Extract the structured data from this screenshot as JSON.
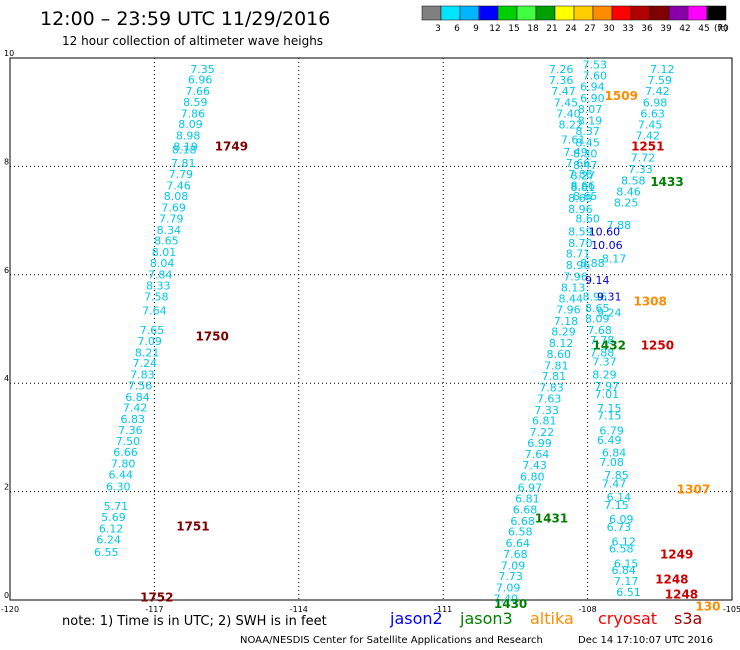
{
  "title": "12:00 – 23:59 UTC 11/29/2016",
  "subtitle": "12 hour collection of altimeter wave heighs",
  "legend": {
    "colors": [
      "#808080",
      "#00e5ff",
      "#00b4ff",
      "#0000ff",
      "#00d000",
      "#40ff40",
      "#00a000",
      "#ffff00",
      "#ffcc00",
      "#ff8c00",
      "#ff0000",
      "#b00000",
      "#800000",
      "#8800aa",
      "#ff00ff",
      "#000000"
    ],
    "labels": [
      "3",
      "6",
      "9",
      "12",
      "15",
      "18",
      "21",
      "24",
      "27",
      "30",
      "33",
      "36",
      "39",
      "42",
      "45",
      "70"
    ],
    "unit": "(ft)"
  },
  "note": "note: 1) Time is in UTC; 2) SWH is in feet",
  "satellites": [
    {
      "name": "jason2",
      "color": "#0000ff"
    },
    {
      "name": "jason3",
      "color": "#008000"
    },
    {
      "name": "altika",
      "color": "#ff8c00"
    },
    {
      "name": "cryosat",
      "color": "#ff0000"
    },
    {
      "name": "s3a",
      "color": "#a00000"
    }
  ],
  "credit": "NOAA/NESDIS Center for Satellite Applications and Research",
  "timestamp": "Dec 14 17:10:07 UTC 2016",
  "chart_data": {
    "type": "scatter",
    "title": "12:00 – 23:59 UTC 11/29/2016",
    "xlim": [
      -120,
      -105
    ],
    "ylim": [
      0,
      10
    ],
    "xticks": [
      "-120",
      "-117",
      "-114",
      "-111",
      "-108",
      "-105"
    ],
    "yticks": [
      "0",
      "2",
      "4",
      "6",
      "8",
      "10"
    ],
    "grid": "dotted",
    "series": [
      {
        "name": "s3a",
        "color": "#00c8e8",
        "points": [
          {
            "x": -116.0,
            "y": 9.8,
            "v": "7.35"
          },
          {
            "x": -116.05,
            "y": 9.6,
            "v": "6.96"
          },
          {
            "x": -116.1,
            "y": 9.39,
            "v": "7.66"
          },
          {
            "x": -116.15,
            "y": 9.19,
            "v": "8.59"
          },
          {
            "x": -116.2,
            "y": 8.98,
            "v": "7.86"
          },
          {
            "x": -116.25,
            "y": 8.78,
            "v": "8.09"
          },
          {
            "x": -116.3,
            "y": 8.57,
            "v": "8.98"
          },
          {
            "x": -116.35,
            "y": 8.37,
            "v": "8.19"
          },
          {
            "x": -116.38,
            "y": 8.31,
            "v": "8.18"
          },
          {
            "x": -116.4,
            "y": 8.06,
            "v": "7.81"
          },
          {
            "x": -116.45,
            "y": 7.86,
            "v": "7.79"
          },
          {
            "x": -116.5,
            "y": 7.65,
            "v": "7.46"
          },
          {
            "x": -116.55,
            "y": 7.45,
            "v": "8.08"
          },
          {
            "x": -116.6,
            "y": 7.24,
            "v": "7.69"
          },
          {
            "x": -116.65,
            "y": 7.04,
            "v": "7.79"
          },
          {
            "x": -116.7,
            "y": 6.83,
            "v": "8.34"
          },
          {
            "x": -116.75,
            "y": 6.63,
            "v": "8.65"
          },
          {
            "x": -116.8,
            "y": 6.42,
            "v": "8.01"
          },
          {
            "x": -116.84,
            "y": 6.22,
            "v": "8.04"
          },
          {
            "x": -116.88,
            "y": 6.01,
            "v": "7.84"
          },
          {
            "x": -116.92,
            "y": 5.8,
            "v": "8.33"
          },
          {
            "x": -116.96,
            "y": 5.6,
            "v": "7.58"
          },
          {
            "x": -117.0,
            "y": 5.34,
            "v": "7.64"
          },
          {
            "x": -117.05,
            "y": 4.98,
            "v": "7.65"
          },
          {
            "x": -117.1,
            "y": 4.78,
            "v": "7.09"
          },
          {
            "x": -117.15,
            "y": 4.57,
            "v": "8.21"
          },
          {
            "x": -117.2,
            "y": 4.37,
            "v": "7.24"
          },
          {
            "x": -117.25,
            "y": 4.16,
            "v": "7.83"
          },
          {
            "x": -117.3,
            "y": 3.96,
            "v": "7.56"
          },
          {
            "x": -117.35,
            "y": 3.75,
            "v": "6.84"
          },
          {
            "x": -117.4,
            "y": 3.55,
            "v": "7.42"
          },
          {
            "x": -117.45,
            "y": 3.34,
            "v": "6.83"
          },
          {
            "x": -117.5,
            "y": 3.14,
            "v": "7.36"
          },
          {
            "x": -117.55,
            "y": 2.93,
            "v": "7.50"
          },
          {
            "x": -117.6,
            "y": 2.73,
            "v": "6.66"
          },
          {
            "x": -117.65,
            "y": 2.52,
            "v": "7.80"
          },
          {
            "x": -117.7,
            "y": 2.32,
            "v": "6.44"
          },
          {
            "x": -117.75,
            "y": 2.09,
            "v": "6.30"
          },
          {
            "x": -117.8,
            "y": 1.73,
            "v": "5.71"
          },
          {
            "x": -117.85,
            "y": 1.53,
            "v": "5.69"
          },
          {
            "x": -117.9,
            "y": 1.32,
            "v": "6.12"
          },
          {
            "x": -117.95,
            "y": 1.12,
            "v": "6.24"
          },
          {
            "x": -118.0,
            "y": 0.89,
            "v": "6.55"
          }
        ]
      },
      {
        "name": "jason3",
        "color": "#00c8e8",
        "points": [
          {
            "x": -107.85,
            "y": 9.88,
            "v": "7.53"
          },
          {
            "x": -107.85,
            "y": 9.68,
            "v": "7.60"
          },
          {
            "x": -107.9,
            "y": 9.47,
            "v": "6.94"
          },
          {
            "x": -107.9,
            "y": 9.26,
            "v": "6.90"
          },
          {
            "x": -107.95,
            "y": 9.06,
            "v": "8.07"
          },
          {
            "x": -107.95,
            "y": 8.85,
            "v": "8.19"
          },
          {
            "x": -108.0,
            "y": 8.65,
            "v": "8.37"
          },
          {
            "x": -108.0,
            "y": 8.44,
            "v": "8.45"
          },
          {
            "x": -108.05,
            "y": 8.24,
            "v": "8.30"
          },
          {
            "x": -108.05,
            "y": 8.03,
            "v": "8.47"
          },
          {
            "x": -108.1,
            "y": 7.83,
            "v": "8.27"
          },
          {
            "x": -108.1,
            "y": 7.62,
            "v": "8.81"
          },
          {
            "x": -108.15,
            "y": 7.42,
            "v": "8.69"
          },
          {
            "x": -108.15,
            "y": 7.21,
            "v": "8.96"
          },
          {
            "x": -108.15,
            "y": 6.8,
            "v": "8.59"
          },
          {
            "x": -108.15,
            "y": 6.59,
            "v": "8.70"
          },
          {
            "x": -108.2,
            "y": 6.39,
            "v": "8.71"
          },
          {
            "x": -108.2,
            "y": 6.18,
            "v": "8.96"
          },
          {
            "x": -108.25,
            "y": 5.97,
            "v": "7.96"
          },
          {
            "x": -108.3,
            "y": 5.77,
            "v": "8.13"
          },
          {
            "x": -108.35,
            "y": 5.56,
            "v": "8.44"
          },
          {
            "x": -108.4,
            "y": 5.36,
            "v": "7.96"
          },
          {
            "x": -108.45,
            "y": 5.15,
            "v": "7.18"
          },
          {
            "x": -108.5,
            "y": 4.95,
            "v": "8.29"
          },
          {
            "x": -108.55,
            "y": 4.74,
            "v": "8.12"
          },
          {
            "x": -108.6,
            "y": 4.54,
            "v": "8.60"
          },
          {
            "x": -108.65,
            "y": 4.33,
            "v": "7.81"
          },
          {
            "x": -108.7,
            "y": 4.13,
            "v": "7.81"
          },
          {
            "x": -108.75,
            "y": 3.92,
            "v": "7.83"
          },
          {
            "x": -108.8,
            "y": 3.72,
            "v": "7.63"
          },
          {
            "x": -108.85,
            "y": 3.51,
            "v": "7.33"
          },
          {
            "x": -108.9,
            "y": 3.31,
            "v": "6.81"
          },
          {
            "x": -108.95,
            "y": 3.1,
            "v": "7.22"
          },
          {
            "x": -109.0,
            "y": 2.9,
            "v": "6.99"
          },
          {
            "x": -109.05,
            "y": 2.69,
            "v": "7.64"
          },
          {
            "x": -109.1,
            "y": 2.49,
            "v": "7.43"
          },
          {
            "x": -109.15,
            "y": 2.28,
            "v": "6.80"
          },
          {
            "x": -109.2,
            "y": 2.08,
            "v": "6.97"
          },
          {
            "x": -109.25,
            "y": 1.87,
            "v": "6.81"
          },
          {
            "x": -109.3,
            "y": 1.67,
            "v": "6.68"
          },
          {
            "x": -109.35,
            "y": 1.46,
            "v": "6.68"
          },
          {
            "x": -109.4,
            "y": 1.26,
            "v": "6.58"
          },
          {
            "x": -109.45,
            "y": 1.05,
            "v": "6.64"
          },
          {
            "x": -109.5,
            "y": 0.85,
            "v": "7.68"
          },
          {
            "x": -109.55,
            "y": 0.64,
            "v": "7.09"
          },
          {
            "x": -109.6,
            "y": 0.44,
            "v": "7.73"
          },
          {
            "x": -109.65,
            "y": 0.23,
            "v": "7.09"
          },
          {
            "x": -109.7,
            "y": 0.03,
            "v": "7.40"
          }
        ]
      },
      {
        "name": "altika",
        "color": "#00c8e8",
        "points": [
          {
            "x": -108.55,
            "y": 9.8,
            "v": "7.26"
          },
          {
            "x": -108.55,
            "y": 9.59,
            "v": "7.36"
          },
          {
            "x": -108.5,
            "y": 9.39,
            "v": "7.47"
          },
          {
            "x": -108.45,
            "y": 9.18,
            "v": "7.45"
          },
          {
            "x": -108.4,
            "y": 8.98,
            "v": "7.40"
          },
          {
            "x": -108.35,
            "y": 8.77,
            "v": "8.22"
          },
          {
            "x": -108.3,
            "y": 8.5,
            "v": "7.61"
          },
          {
            "x": -108.25,
            "y": 8.27,
            "v": "7.49"
          },
          {
            "x": -108.2,
            "y": 8.06,
            "v": "7.66"
          },
          {
            "x": -108.15,
            "y": 7.86,
            "v": "7.86"
          },
          {
            "x": -108.1,
            "y": 7.65,
            "v": "8.66"
          },
          {
            "x": -108.05,
            "y": 7.45,
            "v": "8.65"
          },
          {
            "x": -108.0,
            "y": 7.04,
            "v": "8.60"
          },
          {
            "x": -107.9,
            "y": 6.22,
            "v": "8.88"
          },
          {
            "x": -107.85,
            "y": 5.6,
            "v": "8.96"
          },
          {
            "x": -107.8,
            "y": 5.39,
            "v": "8.65"
          },
          {
            "x": -107.8,
            "y": 5.19,
            "v": "8.09"
          },
          {
            "x": -107.75,
            "y": 4.98,
            "v": "7.68"
          },
          {
            "x": -107.7,
            "y": 4.57,
            "v": "7.88"
          },
          {
            "x": -107.65,
            "y": 4.16,
            "v": "8.29"
          },
          {
            "x": -107.6,
            "y": 3.95,
            "v": "7.97"
          },
          {
            "x": -107.55,
            "y": 3.54,
            "v": "7.15"
          },
          {
            "x": -107.5,
            "y": 3.13,
            "v": "6.79"
          },
          {
            "x": -107.45,
            "y": 2.72,
            "v": "6.84"
          },
          {
            "x": -107.4,
            "y": 2.31,
            "v": "7.85"
          },
          {
            "x": -107.35,
            "y": 1.9,
            "v": "6.14"
          },
          {
            "x": -107.3,
            "y": 1.49,
            "v": "6.09"
          },
          {
            "x": -107.25,
            "y": 1.08,
            "v": "6.12"
          },
          {
            "x": -107.2,
            "y": 0.67,
            "v": "6.15"
          }
        ]
      },
      {
        "name": "cryosat",
        "color": "#00c8e8",
        "points": [
          {
            "x": -106.45,
            "y": 9.8,
            "v": "7.12"
          },
          {
            "x": -106.5,
            "y": 9.59,
            "v": "7.59"
          },
          {
            "x": -106.55,
            "y": 9.39,
            "v": "7.42"
          },
          {
            "x": -106.6,
            "y": 9.18,
            "v": "6.98"
          },
          {
            "x": -106.65,
            "y": 8.98,
            "v": "6.63"
          },
          {
            "x": -106.7,
            "y": 8.77,
            "v": "7.45"
          },
          {
            "x": -106.75,
            "y": 8.57,
            "v": "7.42"
          },
          {
            "x": -106.85,
            "y": 8.16,
            "v": "7.72"
          },
          {
            "x": -106.9,
            "y": 7.95,
            "v": "7.33"
          },
          {
            "x": -107.05,
            "y": 7.74,
            "v": "8.58"
          },
          {
            "x": -107.15,
            "y": 7.54,
            "v": "8.46"
          },
          {
            "x": -107.2,
            "y": 7.33,
            "v": "8.25"
          },
          {
            "x": -107.35,
            "y": 6.92,
            "v": "7.88"
          },
          {
            "x": -107.45,
            "y": 6.3,
            "v": "8.17"
          },
          {
            "x": -107.55,
            "y": 5.3,
            "v": "9.24"
          },
          {
            "x": -107.7,
            "y": 4.8,
            "v": "7.78"
          },
          {
            "x": -107.65,
            "y": 4.4,
            "v": "7.37"
          },
          {
            "x": -107.6,
            "y": 3.8,
            "v": "7.01"
          },
          {
            "x": -107.55,
            "y": 3.4,
            "v": "7.15"
          },
          {
            "x": -107.55,
            "y": 2.95,
            "v": "6.49"
          },
          {
            "x": -107.5,
            "y": 2.55,
            "v": "7.08"
          },
          {
            "x": -107.45,
            "y": 2.15,
            "v": "7.47"
          },
          {
            "x": -107.4,
            "y": 1.75,
            "v": "7.15"
          },
          {
            "x": -107.35,
            "y": 1.35,
            "v": "6.73"
          },
          {
            "x": -107.3,
            "y": 0.95,
            "v": "6.58"
          },
          {
            "x": -107.25,
            "y": 0.55,
            "v": "6.84"
          },
          {
            "x": -107.2,
            "y": 0.35,
            "v": "7.17"
          },
          {
            "x": -107.15,
            "y": 0.15,
            "v": "6.51"
          }
        ]
      },
      {
        "name": "jason2",
        "color": "#0000cc",
        "points": [
          {
            "x": -107.65,
            "y": 6.8,
            "v": "10.60"
          },
          {
            "x": -107.6,
            "y": 6.55,
            "v": "10.06"
          },
          {
            "x": -107.8,
            "y": 5.9,
            "v": "9.14"
          },
          {
            "x": -107.55,
            "y": 5.6,
            "v": "9.31"
          }
        ]
      }
    ],
    "times": [
      {
        "label": "1749",
        "x": -115.4,
        "y": 8.37,
        "color": "#800000"
      },
      {
        "label": "1750",
        "x": -115.8,
        "y": 4.86,
        "color": "#800000"
      },
      {
        "label": "1751",
        "x": -116.2,
        "y": 1.36,
        "color": "#800000"
      },
      {
        "label": "1752",
        "x": -116.95,
        "y": 0.05,
        "color": "#800000"
      },
      {
        "label": "1509",
        "x": -107.3,
        "y": 9.3,
        "color": "#ff8c00"
      },
      {
        "label": "1251",
        "x": -106.75,
        "y": 8.37,
        "color": "#cc0000"
      },
      {
        "label": "1433",
        "x": -106.35,
        "y": 7.71,
        "color": "#008000"
      },
      {
        "label": "1308",
        "x": -106.7,
        "y": 5.51,
        "color": "#ff8c00"
      },
      {
        "label": "1432",
        "x": -107.55,
        "y": 4.7,
        "color": "#008000"
      },
      {
        "label": "1250",
        "x": -106.55,
        "y": 4.7,
        "color": "#cc0000"
      },
      {
        "label": "1307",
        "x": -105.8,
        "y": 2.04,
        "color": "#ff8c00"
      },
      {
        "label": "1431",
        "x": -108.75,
        "y": 1.5,
        "color": "#008000"
      },
      {
        "label": "1249",
        "x": -106.15,
        "y": 0.84,
        "color": "#cc0000"
      },
      {
        "label": "1248",
        "x": -106.25,
        "y": 0.38,
        "color": "#cc0000"
      },
      {
        "label": "1248",
        "x": -106.05,
        "y": 0.1,
        "color": "#cc0000"
      },
      {
        "label": "1430",
        "x": -109.6,
        "y": -0.07,
        "color": "#008000"
      },
      {
        "label": "130",
        "x": -105.5,
        "y": -0.12,
        "color": "#ff8c00"
      }
    ]
  }
}
